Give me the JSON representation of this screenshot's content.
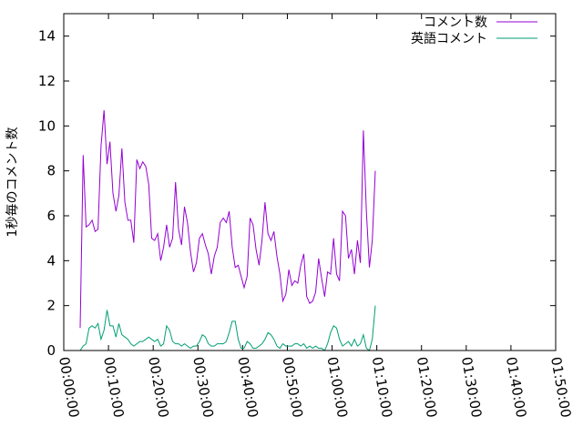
{
  "chart_data": {
    "type": "line",
    "title": "",
    "xlabel": "",
    "ylabel": "1秒毎のコメント数",
    "x_unit": "elapsed time (hh:mm:ss)",
    "xlim_seconds": [
      0,
      6600
    ],
    "ylim": [
      0,
      15
    ],
    "x_ticks": [
      "00:00:00",
      "00:10:00",
      "00:20:00",
      "00:30:00",
      "00:40:00",
      "00:50:00",
      "01:00:00",
      "01:10:00",
      "01:20:00",
      "01:30:00",
      "01:40:00",
      "01:50:00"
    ],
    "y_ticks": [
      "0",
      "2",
      "4",
      "6",
      "8",
      "10",
      "12",
      "14"
    ],
    "grid": false,
    "legend_position": "top-right",
    "series": [
      {
        "name": "コメント数",
        "color": "#9400d3",
        "points": [
          [
            "00:03:40",
            1.0
          ],
          [
            "00:04:20",
            8.7
          ],
          [
            "00:05:00",
            5.5
          ],
          [
            "00:05:40",
            5.6
          ],
          [
            "00:06:20",
            5.8
          ],
          [
            "00:07:00",
            5.3
          ],
          [
            "00:07:40",
            5.4
          ],
          [
            "00:08:20",
            9.1
          ],
          [
            "00:09:00",
            10.7
          ],
          [
            "00:09:40",
            8.3
          ],
          [
            "00:10:20",
            9.3
          ],
          [
            "00:11:00",
            7.0
          ],
          [
            "00:11:40",
            6.2
          ],
          [
            "00:12:20",
            6.9
          ],
          [
            "00:13:00",
            9.0
          ],
          [
            "00:13:40",
            6.6
          ],
          [
            "00:14:20",
            5.8
          ],
          [
            "00:15:00",
            5.8
          ],
          [
            "00:15:40",
            4.8
          ],
          [
            "00:16:20",
            8.5
          ],
          [
            "00:17:00",
            8.1
          ],
          [
            "00:17:40",
            8.4
          ],
          [
            "00:18:20",
            8.2
          ],
          [
            "00:19:00",
            7.4
          ],
          [
            "00:19:40",
            5.0
          ],
          [
            "00:20:20",
            4.9
          ],
          [
            "00:21:00",
            5.2
          ],
          [
            "00:21:40",
            4.0
          ],
          [
            "00:22:20",
            4.6
          ],
          [
            "00:23:00",
            5.6
          ],
          [
            "00:23:40",
            4.6
          ],
          [
            "00:24:20",
            5.0
          ],
          [
            "00:25:00",
            7.5
          ],
          [
            "00:25:40",
            5.4
          ],
          [
            "00:26:20",
            4.7
          ],
          [
            "00:27:00",
            6.4
          ],
          [
            "00:27:40",
            5.7
          ],
          [
            "00:28:20",
            4.4
          ],
          [
            "00:29:00",
            3.5
          ],
          [
            "00:29:40",
            3.9
          ],
          [
            "00:30:20",
            5.0
          ],
          [
            "00:31:00",
            5.2
          ],
          [
            "00:31:40",
            4.7
          ],
          [
            "00:32:20",
            4.3
          ],
          [
            "00:33:00",
            3.4
          ],
          [
            "00:33:40",
            4.2
          ],
          [
            "00:34:20",
            4.6
          ],
          [
            "00:35:00",
            5.7
          ],
          [
            "00:35:40",
            5.9
          ],
          [
            "00:36:20",
            5.7
          ],
          [
            "00:37:00",
            6.2
          ],
          [
            "00:37:40",
            4.6
          ],
          [
            "00:38:20",
            3.7
          ],
          [
            "00:39:00",
            3.8
          ],
          [
            "00:39:40",
            3.3
          ],
          [
            "00:40:20",
            2.8
          ],
          [
            "00:41:00",
            3.3
          ],
          [
            "00:41:40",
            5.9
          ],
          [
            "00:42:20",
            5.6
          ],
          [
            "00:43:00",
            4.5
          ],
          [
            "00:43:40",
            3.8
          ],
          [
            "00:44:20",
            4.9
          ],
          [
            "00:45:00",
            6.6
          ],
          [
            "00:45:40",
            5.2
          ],
          [
            "00:46:20",
            4.9
          ],
          [
            "00:47:00",
            5.3
          ],
          [
            "00:47:40",
            4.2
          ],
          [
            "00:48:20",
            3.4
          ],
          [
            "00:49:00",
            2.2
          ],
          [
            "00:49:40",
            2.5
          ],
          [
            "00:50:20",
            3.6
          ],
          [
            "00:51:00",
            2.9
          ],
          [
            "00:51:40",
            3.1
          ],
          [
            "00:52:20",
            3.0
          ],
          [
            "00:53:00",
            3.8
          ],
          [
            "00:53:40",
            4.3
          ],
          [
            "00:54:20",
            2.4
          ],
          [
            "00:55:00",
            2.1
          ],
          [
            "00:55:40",
            2.2
          ],
          [
            "00:56:20",
            2.6
          ],
          [
            "00:57:00",
            4.1
          ],
          [
            "00:57:40",
            3.2
          ],
          [
            "00:58:20",
            2.4
          ],
          [
            "00:59:00",
            3.5
          ],
          [
            "00:59:40",
            3.4
          ],
          [
            "01:00:20",
            5.0
          ],
          [
            "01:01:00",
            3.4
          ],
          [
            "01:01:40",
            3.1
          ],
          [
            "01:02:20",
            6.2
          ],
          [
            "01:03:00",
            6.0
          ],
          [
            "01:03:40",
            4.1
          ],
          [
            "01:04:20",
            4.5
          ],
          [
            "01:05:00",
            3.4
          ],
          [
            "01:05:40",
            4.9
          ],
          [
            "01:06:20",
            3.9
          ],
          [
            "01:07:00",
            9.8
          ],
          [
            "01:07:40",
            6.2
          ],
          [
            "01:08:20",
            3.7
          ],
          [
            "01:09:00",
            4.9
          ],
          [
            "01:09:40",
            8.0
          ]
        ]
      },
      {
        "name": "英語コメント",
        "color": "#009e73",
        "points": [
          [
            "00:03:40",
            0.0
          ],
          [
            "00:04:20",
            0.2
          ],
          [
            "00:05:00",
            0.3
          ],
          [
            "00:05:40",
            1.0
          ],
          [
            "00:06:20",
            1.1
          ],
          [
            "00:07:00",
            1.0
          ],
          [
            "00:07:40",
            1.2
          ],
          [
            "00:08:20",
            0.5
          ],
          [
            "00:09:00",
            0.9
          ],
          [
            "00:09:40",
            1.8
          ],
          [
            "00:10:20",
            1.1
          ],
          [
            "00:11:00",
            1.1
          ],
          [
            "00:11:40",
            0.6
          ],
          [
            "00:12:20",
            1.2
          ],
          [
            "00:13:00",
            0.7
          ],
          [
            "00:13:40",
            0.6
          ],
          [
            "00:14:20",
            0.5
          ],
          [
            "00:15:00",
            0.3
          ],
          [
            "00:15:40",
            0.2
          ],
          [
            "00:16:20",
            0.3
          ],
          [
            "00:17:00",
            0.4
          ],
          [
            "00:17:40",
            0.4
          ],
          [
            "00:18:20",
            0.5
          ],
          [
            "00:19:00",
            0.6
          ],
          [
            "00:19:40",
            0.5
          ],
          [
            "00:20:20",
            0.4
          ],
          [
            "00:21:00",
            0.5
          ],
          [
            "00:21:40",
            0.2
          ],
          [
            "00:22:20",
            0.3
          ],
          [
            "00:23:00",
            1.1
          ],
          [
            "00:23:40",
            0.9
          ],
          [
            "00:24:20",
            0.4
          ],
          [
            "00:25:00",
            0.3
          ],
          [
            "00:25:40",
            0.3
          ],
          [
            "00:26:20",
            0.2
          ],
          [
            "00:27:00",
            0.3
          ],
          [
            "00:27:40",
            0.2
          ],
          [
            "00:28:20",
            0.1
          ],
          [
            "00:29:00",
            0.2
          ],
          [
            "00:29:40",
            0.2
          ],
          [
            "00:30:20",
            0.4
          ],
          [
            "00:31:00",
            0.7
          ],
          [
            "00:31:40",
            0.6
          ],
          [
            "00:32:20",
            0.3
          ],
          [
            "00:33:00",
            0.2
          ],
          [
            "00:33:40",
            0.2
          ],
          [
            "00:34:20",
            0.3
          ],
          [
            "00:35:00",
            0.3
          ],
          [
            "00:35:40",
            0.3
          ],
          [
            "00:36:20",
            0.4
          ],
          [
            "00:37:00",
            0.8
          ],
          [
            "00:37:40",
            1.3
          ],
          [
            "00:38:20",
            1.3
          ],
          [
            "00:39:00",
            0.5
          ],
          [
            "00:39:40",
            0.1
          ],
          [
            "00:40:20",
            0.1
          ],
          [
            "00:41:00",
            0.4
          ],
          [
            "00:41:40",
            0.3
          ],
          [
            "00:42:20",
            0.1
          ],
          [
            "00:43:00",
            0.1
          ],
          [
            "00:43:40",
            0.2
          ],
          [
            "00:44:20",
            0.3
          ],
          [
            "00:45:00",
            0.5
          ],
          [
            "00:45:40",
            0.8
          ],
          [
            "00:46:20",
            0.7
          ],
          [
            "00:47:00",
            0.5
          ],
          [
            "00:47:40",
            0.2
          ],
          [
            "00:48:20",
            0.1
          ],
          [
            "00:49:00",
            0.3
          ],
          [
            "00:49:40",
            0.2
          ],
          [
            "00:50:20",
            0.2
          ],
          [
            "00:51:00",
            0.2
          ],
          [
            "00:51:40",
            0.3
          ],
          [
            "00:52:20",
            0.3
          ],
          [
            "00:53:00",
            0.2
          ],
          [
            "00:53:40",
            0.3
          ],
          [
            "00:54:20",
            0.1
          ],
          [
            "00:55:00",
            0.2
          ],
          [
            "00:55:40",
            0.1
          ],
          [
            "00:56:20",
            0.2
          ],
          [
            "00:57:00",
            0.1
          ],
          [
            "00:57:40",
            0.1
          ],
          [
            "00:58:20",
            0.0
          ],
          [
            "00:59:00",
            0.3
          ],
          [
            "00:59:40",
            0.8
          ],
          [
            "01:00:20",
            1.1
          ],
          [
            "01:01:00",
            1.0
          ],
          [
            "01:01:40",
            0.5
          ],
          [
            "01:02:20",
            0.2
          ],
          [
            "01:03:00",
            0.3
          ],
          [
            "01:03:40",
            0.4
          ],
          [
            "01:04:20",
            0.2
          ],
          [
            "01:05:00",
            0.5
          ],
          [
            "01:05:40",
            0.2
          ],
          [
            "01:06:20",
            0.3
          ],
          [
            "01:07:00",
            0.7
          ],
          [
            "01:07:40",
            0.1
          ],
          [
            "01:08:20",
            0.0
          ],
          [
            "01:09:00",
            0.5
          ],
          [
            "01:09:40",
            2.0
          ]
        ]
      }
    ]
  }
}
